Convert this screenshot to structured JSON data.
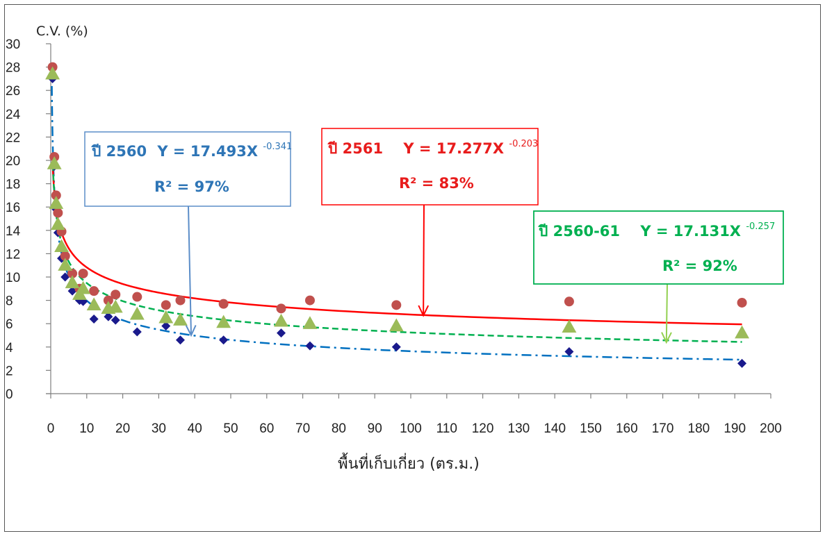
{
  "chart_data": {
    "type": "scatter",
    "title": "",
    "xlabel": "พื้นที่เก็บเกี่ยว (ตร.ม.)",
    "ylabel": "C.V. (%)",
    "xlim": [
      0,
      200
    ],
    "ylim": [
      0,
      30
    ],
    "x_ticks": [
      "0",
      "10",
      "20",
      "30",
      "40",
      "50",
      "60",
      "70",
      "80",
      "90",
      "100",
      "110",
      "120",
      "130",
      "140",
      "150",
      "160",
      "170",
      "180",
      "190",
      "200"
    ],
    "y_ticks": [
      "0",
      "2",
      "4",
      "6",
      "8",
      "10",
      "12",
      "14",
      "16",
      "18",
      "20",
      "22",
      "24",
      "26",
      "28",
      "30"
    ],
    "grid": false,
    "legend": "none",
    "series": [
      {
        "marker": "diamond",
        "color": "#1a1a8c",
        "points": [
          [
            0.5,
            27.0
          ],
          [
            1,
            19.5
          ],
          [
            1.5,
            15.8
          ],
          [
            2,
            13.8
          ],
          [
            3,
            11.6
          ],
          [
            4,
            10.0
          ],
          [
            6,
            8.8
          ],
          [
            8,
            8.0
          ],
          [
            9,
            7.9
          ],
          [
            12,
            6.4
          ],
          [
            16,
            6.6
          ],
          [
            18,
            6.3
          ],
          [
            24,
            5.3
          ],
          [
            32,
            5.8
          ],
          [
            36,
            4.6
          ],
          [
            48,
            4.6
          ],
          [
            64,
            5.2
          ],
          [
            72,
            4.1
          ],
          [
            96,
            4.0
          ],
          [
            144,
            3.6
          ],
          [
            192,
            2.6
          ]
        ]
      },
      {
        "marker": "circle",
        "color": "#c0504d",
        "points": [
          [
            0.5,
            28.0
          ],
          [
            1,
            20.3
          ],
          [
            1.5,
            17.0
          ],
          [
            2,
            15.5
          ],
          [
            3,
            13.9
          ],
          [
            4,
            11.8
          ],
          [
            6,
            10.3
          ],
          [
            8,
            9.0
          ],
          [
            9,
            10.3
          ],
          [
            12,
            8.8
          ],
          [
            16,
            8.0
          ],
          [
            18,
            8.5
          ],
          [
            24,
            8.3
          ],
          [
            32,
            7.6
          ],
          [
            36,
            8.0
          ],
          [
            48,
            7.7
          ],
          [
            64,
            7.3
          ],
          [
            72,
            8.0
          ],
          [
            96,
            7.6
          ],
          [
            144,
            7.9
          ],
          [
            192,
            7.8
          ]
        ]
      },
      {
        "marker": "triangle",
        "color": "#9bbb59",
        "points": [
          [
            0.5,
            27.4
          ],
          [
            1,
            19.7
          ],
          [
            1.5,
            16.3
          ],
          [
            2,
            14.5
          ],
          [
            3,
            12.6
          ],
          [
            4,
            11.0
          ],
          [
            6,
            9.5
          ],
          [
            8,
            8.5
          ],
          [
            9,
            9.0
          ],
          [
            12,
            7.6
          ],
          [
            16,
            7.3
          ],
          [
            18,
            7.4
          ],
          [
            24,
            6.8
          ],
          [
            32,
            6.5
          ],
          [
            36,
            6.3
          ],
          [
            48,
            6.1
          ],
          [
            64,
            6.2
          ],
          [
            72,
            6.0
          ],
          [
            96,
            5.8
          ],
          [
            144,
            5.7
          ],
          [
            192,
            5.2
          ]
        ]
      }
    ],
    "trendlines": [
      {
        "a": 17.493,
        "b": -0.341,
        "x_start": 0.3,
        "x_end": 192,
        "color": "#0070c0",
        "style": "dash-dot"
      },
      {
        "a": 17.277,
        "b": -0.203,
        "x_start": 0.5,
        "x_end": 192,
        "color": "#ff0000",
        "style": "solid"
      },
      {
        "a": 17.131,
        "b": -0.257,
        "x_start": 0.5,
        "x_end": 192,
        "color": "#00b050",
        "style": "dashed"
      }
    ],
    "annotations": [
      {
        "id": "2560",
        "year_label": "ปี 2560",
        "eq_prefix": "Y = 17.493X",
        "eq_exp": "-0.341",
        "r2": "R² = 97%",
        "text_color": "#2e75b6",
        "border_color": "#5b8dc8",
        "arrow_color": "#5b8dc8",
        "arrow_target": [
          39,
          5.0
        ]
      },
      {
        "id": "2561",
        "year_label": "ปี 2561",
        "eq_prefix": "Y = 17.277X",
        "eq_exp": "-0.203",
        "r2": "R² = 83%",
        "text_color": "#e81c1c",
        "border_color": "#ff0000",
        "arrow_color": "#ff0000",
        "arrow_target": [
          103.5,
          6.7
        ]
      },
      {
        "id": "2560-61",
        "year_label": "ปี 2560-61",
        "eq_prefix": "Y  = 17.131X",
        "eq_exp": "-0.257",
        "r2": "R² = 92%",
        "text_color": "#00b050",
        "border_color": "#00b050",
        "arrow_color": "#92d050",
        "arrow_target": [
          171,
          4.4
        ]
      }
    ]
  }
}
